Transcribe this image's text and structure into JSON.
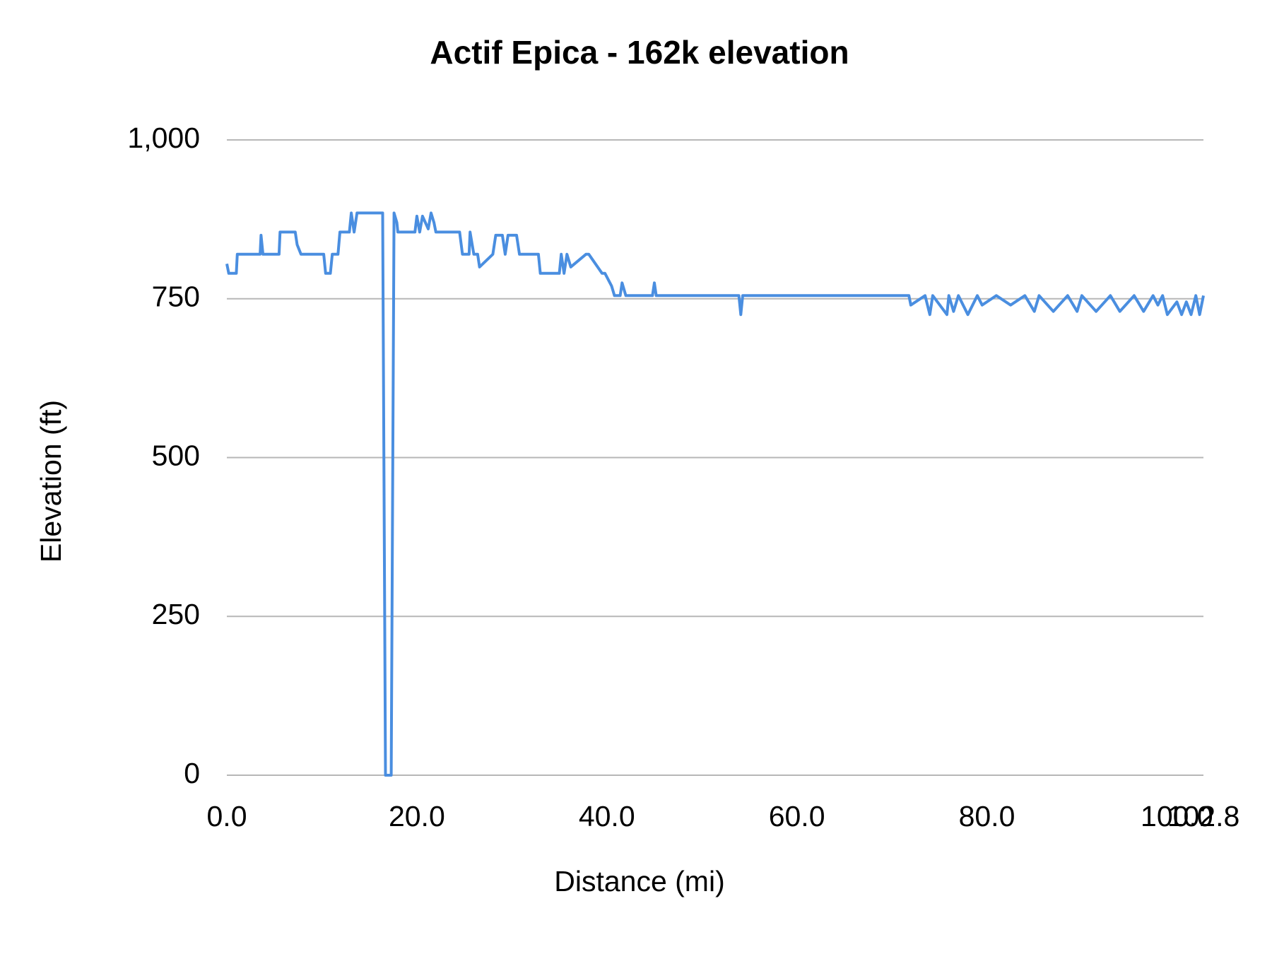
{
  "chart_data": {
    "type": "line",
    "title": "Actif Epica - 162k elevation",
    "x_label": "Distance (mi)",
    "y_label": "Elevation (ft)",
    "xlim": [
      0,
      102.8
    ],
    "ylim": [
      0,
      1000
    ],
    "xticks": [
      {
        "value": 0,
        "label": "0.0"
      },
      {
        "value": 20,
        "label": "20.0"
      },
      {
        "value": 40,
        "label": "40.0"
      },
      {
        "value": 60,
        "label": "60.0"
      },
      {
        "value": 80,
        "label": "80.0"
      },
      {
        "value": 100,
        "label": "100.0"
      },
      {
        "value": 102.8,
        "label": "102.8"
      }
    ],
    "yticks": [
      0,
      250,
      500,
      750,
      {
        "value": 1000,
        "label": "1,000"
      }
    ],
    "grid": true,
    "series": [
      {
        "color": "#4a8ee0",
        "x": [
          0,
          0.2,
          1.0,
          1.1,
          3.5,
          3.6,
          3.8,
          5.5,
          5.6,
          7.2,
          7.4,
          7.8,
          10.2,
          10.4,
          10.9,
          11.1,
          11.7,
          11.9,
          12.9,
          13.1,
          13.4,
          13.7,
          14.0,
          16.4,
          16.7,
          17.1,
          17.3,
          17.6,
          17.9,
          18.0,
          19.8,
          20.0,
          20.3,
          20.6,
          21.2,
          21.5,
          21.8,
          22.0,
          24.5,
          24.8,
          25.5,
          25.6,
          26.0,
          26.4,
          26.6,
          28.0,
          28.3,
          29.0,
          29.3,
          29.6,
          30.5,
          30.8,
          32.8,
          33.0,
          35.0,
          35.2,
          35.5,
          35.8,
          36.2,
          37.8,
          38.1,
          39.5,
          39.8,
          40.5,
          40.8,
          41.4,
          41.6,
          42.0,
          44.8,
          45.0,
          45.2,
          53.9,
          54.1,
          54.3,
          71.8,
          72.0,
          73.5,
          74.0,
          74.3,
          75.8,
          76.0,
          76.5,
          77.0,
          78.0,
          79.0,
          79.5,
          81.0,
          82.5,
          84.0,
          85.0,
          85.5,
          87.0,
          88.5,
          89.5,
          90.0,
          91.5,
          93.0,
          94.0,
          95.5,
          96.5,
          97.5,
          98.0,
          98.5,
          99.0,
          100.0,
          100.5,
          101.0,
          101.5,
          102.0,
          102.4,
          102.8
        ],
        "values": [
          805,
          790,
          790,
          820,
          820,
          850,
          820,
          820,
          855,
          855,
          835,
          820,
          820,
          790,
          790,
          820,
          820,
          855,
          855,
          885,
          855,
          885,
          885,
          885,
          0,
          0,
          0,
          885,
          870,
          855,
          855,
          880,
          855,
          880,
          860,
          885,
          870,
          855,
          855,
          820,
          820,
          855,
          820,
          820,
          800,
          820,
          850,
          850,
          820,
          850,
          850,
          820,
          820,
          790,
          790,
          820,
          790,
          820,
          800,
          820,
          820,
          790,
          790,
          770,
          755,
          755,
          775,
          755,
          755,
          775,
          755,
          755,
          725,
          755,
          755,
          740,
          755,
          725,
          755,
          725,
          755,
          730,
          755,
          725,
          755,
          740,
          755,
          740,
          755,
          730,
          755,
          730,
          755,
          730,
          755,
          730,
          755,
          730,
          755,
          730,
          755,
          740,
          755,
          725,
          745,
          725,
          745,
          725,
          755,
          725,
          755
        ]
      }
    ]
  }
}
